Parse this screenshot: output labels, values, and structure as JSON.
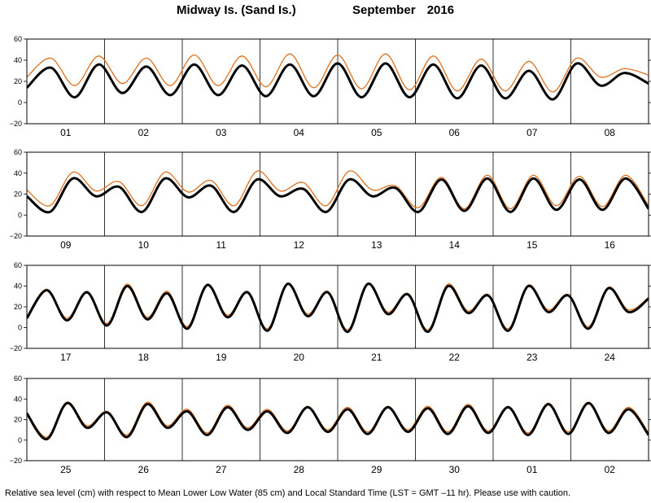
{
  "header": {
    "station": "Midway Is. (Sand Is.)",
    "month": "September",
    "year": "2016"
  },
  "footer_note": "Relative sea level (cm) with respect to Mean Lower Low Water (85 cm) and Local Standard Time (LST = GMT –11 hr). Please use with caution.",
  "colors": {
    "observed": "#000000",
    "predicted": "#e0701c",
    "frame": "#000000"
  },
  "chart_data": [
    {
      "type": "line",
      "days": [
        "01",
        "02",
        "03",
        "04",
        "05",
        "06",
        "07",
        "08"
      ],
      "ylim": [
        -20,
        60
      ],
      "yticks": [
        -20,
        0,
        20,
        40,
        60
      ],
      "series": [
        {
          "values": [
            14,
            33,
            5,
            36,
            9,
            34,
            7,
            36,
            7,
            35,
            6,
            36,
            6,
            37,
            5,
            37,
            5,
            36,
            4,
            35,
            4,
            30,
            3,
            37,
            16,
            28,
            18
          ]
        },
        {
          "values": [
            24,
            42,
            16,
            44,
            18,
            42,
            16,
            45,
            16,
            44,
            15,
            46,
            14,
            45,
            13,
            46,
            12,
            44,
            11,
            41,
            11,
            39,
            10,
            42,
            24,
            32,
            26
          ]
        }
      ]
    },
    {
      "type": "line",
      "days": [
        "09",
        "10",
        "11",
        "12",
        "13",
        "14",
        "15",
        "16"
      ],
      "ylim": [
        -20,
        60
      ],
      "yticks": [
        -20,
        0,
        20,
        40,
        60
      ],
      "series": [
        {
          "values": [
            18,
            3,
            35,
            18,
            27,
            3,
            35,
            17,
            28,
            3,
            34,
            18,
            25,
            3,
            34,
            18,
            26,
            3,
            34,
            4,
            35,
            3,
            35,
            5,
            34,
            5,
            35,
            6
          ]
        },
        {
          "values": [
            24,
            9,
            41,
            23,
            32,
            9,
            41,
            22,
            33,
            9,
            42,
            23,
            31,
            9,
            42,
            24,
            28,
            7,
            36,
            6,
            38,
            6,
            38,
            9,
            37,
            8,
            38,
            9
          ]
        }
      ]
    },
    {
      "type": "line",
      "days": [
        "17",
        "18",
        "19",
        "20",
        "21",
        "22",
        "23",
        "24"
      ],
      "ylim": [
        -20,
        60
      ],
      "yticks": [
        -20,
        0,
        20,
        40,
        60
      ],
      "series": [
        {
          "values": [
            9,
            36,
            7,
            34,
            2,
            40,
            8,
            33,
            -1,
            41,
            10,
            34,
            -3,
            42,
            11,
            34,
            -4,
            42,
            13,
            32,
            -4,
            40,
            14,
            31,
            -3,
            40,
            15,
            31,
            -1,
            38,
            15,
            28
          ]
        },
        {
          "values": [
            11,
            37,
            9,
            35,
            4,
            42,
            10,
            35,
            1,
            42,
            12,
            35,
            -1,
            43,
            13,
            35,
            -2,
            43,
            15,
            33,
            -2,
            42,
            16,
            32,
            -1,
            41,
            17,
            32,
            1,
            39,
            17,
            29
          ]
        }
      ]
    },
    {
      "type": "line",
      "days": [
        "25",
        "26",
        "27",
        "28",
        "29",
        "30",
        "01",
        "02"
      ],
      "ylim": [
        -20,
        60
      ],
      "yticks": [
        -20,
        0,
        20,
        40,
        60
      ],
      "series": [
        {
          "values": [
            26,
            1,
            36,
            12,
            27,
            3,
            35,
            12,
            28,
            5,
            32,
            10,
            28,
            7,
            32,
            8,
            30,
            6,
            32,
            8,
            31,
            6,
            33,
            7,
            32,
            5,
            35,
            6,
            36,
            7,
            30,
            5
          ]
        },
        {
          "values": [
            27,
            3,
            37,
            14,
            28,
            5,
            37,
            14,
            30,
            7,
            34,
            12,
            30,
            9,
            33,
            10,
            32,
            8,
            33,
            10,
            33,
            8,
            35,
            9,
            33,
            7,
            36,
            8,
            37,
            9,
            32,
            7
          ]
        }
      ]
    }
  ]
}
